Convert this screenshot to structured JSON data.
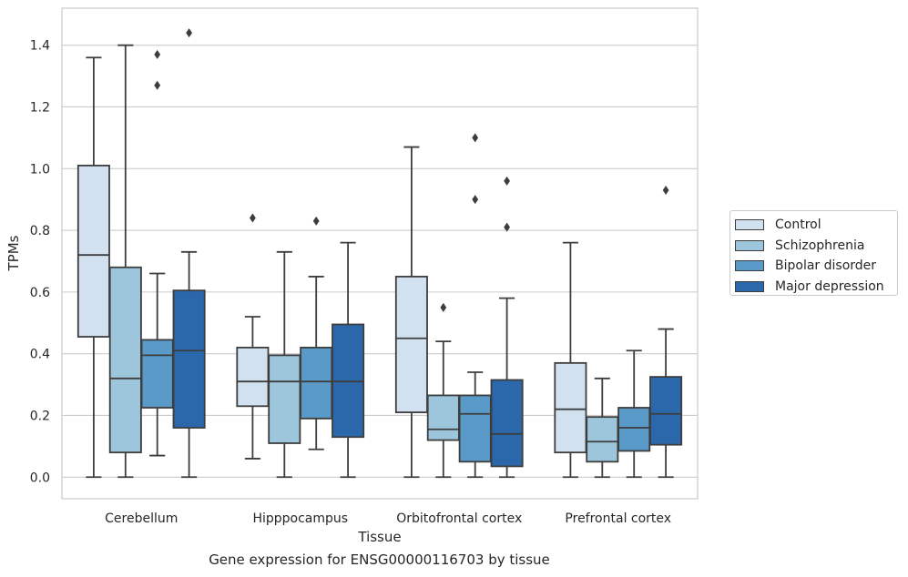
{
  "caption": "Gene expression for ENSG00000116703 by tissue",
  "chart_data": {
    "type": "box",
    "xlabel": "Tissue",
    "ylabel": "TPMs",
    "ylim": [
      -0.07,
      1.52
    ],
    "yticks": [
      0.0,
      0.2,
      0.4,
      0.6,
      0.8,
      1.0,
      1.2,
      1.4
    ],
    "ytick_labels": [
      "0.0",
      "0.2",
      "0.4",
      "0.6",
      "0.8",
      "1.0",
      "1.2",
      "1.4"
    ],
    "grid": "horizontal",
    "legend_position": "outside-right",
    "categories": [
      "Cerebellum",
      "Hipppocampus",
      "Orbitofrontal cortex",
      "Prefrontal cortex"
    ],
    "series": [
      {
        "name": "Control",
        "color": "#d2e1f0",
        "boxes": [
          {
            "whislo": 0.0,
            "q1": 0.455,
            "med": 0.72,
            "q3": 1.01,
            "whishi": 1.36,
            "fliers": []
          },
          {
            "whislo": 0.06,
            "q1": 0.23,
            "med": 0.31,
            "q3": 0.42,
            "whishi": 0.52,
            "fliers": [
              0.84
            ]
          },
          {
            "whislo": 0.0,
            "q1": 0.21,
            "med": 0.45,
            "q3": 0.65,
            "whishi": 1.07,
            "fliers": []
          },
          {
            "whislo": 0.0,
            "q1": 0.08,
            "med": 0.22,
            "q3": 0.37,
            "whishi": 0.76,
            "fliers": []
          }
        ]
      },
      {
        "name": "Schizophrenia",
        "color": "#9dc5dc",
        "boxes": [
          {
            "whislo": 0.0,
            "q1": 0.08,
            "med": 0.32,
            "q3": 0.68,
            "whishi": 1.4,
            "fliers": []
          },
          {
            "whislo": 0.0,
            "q1": 0.11,
            "med": 0.31,
            "q3": 0.395,
            "whishi": 0.73,
            "fliers": []
          },
          {
            "whislo": 0.0,
            "q1": 0.12,
            "med": 0.155,
            "q3": 0.265,
            "whishi": 0.44,
            "fliers": [
              0.55
            ]
          },
          {
            "whislo": 0.0,
            "q1": 0.05,
            "med": 0.115,
            "q3": 0.195,
            "whishi": 0.32,
            "fliers": []
          }
        ]
      },
      {
        "name": "Bipolar disorder",
        "color": "#5a9ac8",
        "boxes": [
          {
            "whislo": 0.07,
            "q1": 0.225,
            "med": 0.395,
            "q3": 0.445,
            "whishi": 0.66,
            "fliers": [
              1.27,
              1.37
            ]
          },
          {
            "whislo": 0.09,
            "q1": 0.19,
            "med": 0.31,
            "q3": 0.42,
            "whishi": 0.65,
            "fliers": [
              0.83
            ]
          },
          {
            "whislo": 0.0,
            "q1": 0.05,
            "med": 0.205,
            "q3": 0.265,
            "whishi": 0.34,
            "fliers": [
              0.9,
              1.1
            ]
          },
          {
            "whislo": 0.0,
            "q1": 0.085,
            "med": 0.16,
            "q3": 0.225,
            "whishi": 0.41,
            "fliers": []
          }
        ]
      },
      {
        "name": "Major depression",
        "color": "#2a68ab",
        "boxes": [
          {
            "whislo": 0.0,
            "q1": 0.16,
            "med": 0.41,
            "q3": 0.605,
            "whishi": 0.73,
            "fliers": [
              1.44
            ]
          },
          {
            "whislo": 0.0,
            "q1": 0.13,
            "med": 0.31,
            "q3": 0.495,
            "whishi": 0.76,
            "fliers": []
          },
          {
            "whislo": 0.0,
            "q1": 0.035,
            "med": 0.14,
            "q3": 0.315,
            "whishi": 0.58,
            "fliers": [
              0.81,
              0.96
            ]
          },
          {
            "whislo": 0.0,
            "q1": 0.105,
            "med": 0.205,
            "q3": 0.325,
            "whishi": 0.48,
            "fliers": [
              0.93
            ]
          }
        ]
      }
    ]
  }
}
